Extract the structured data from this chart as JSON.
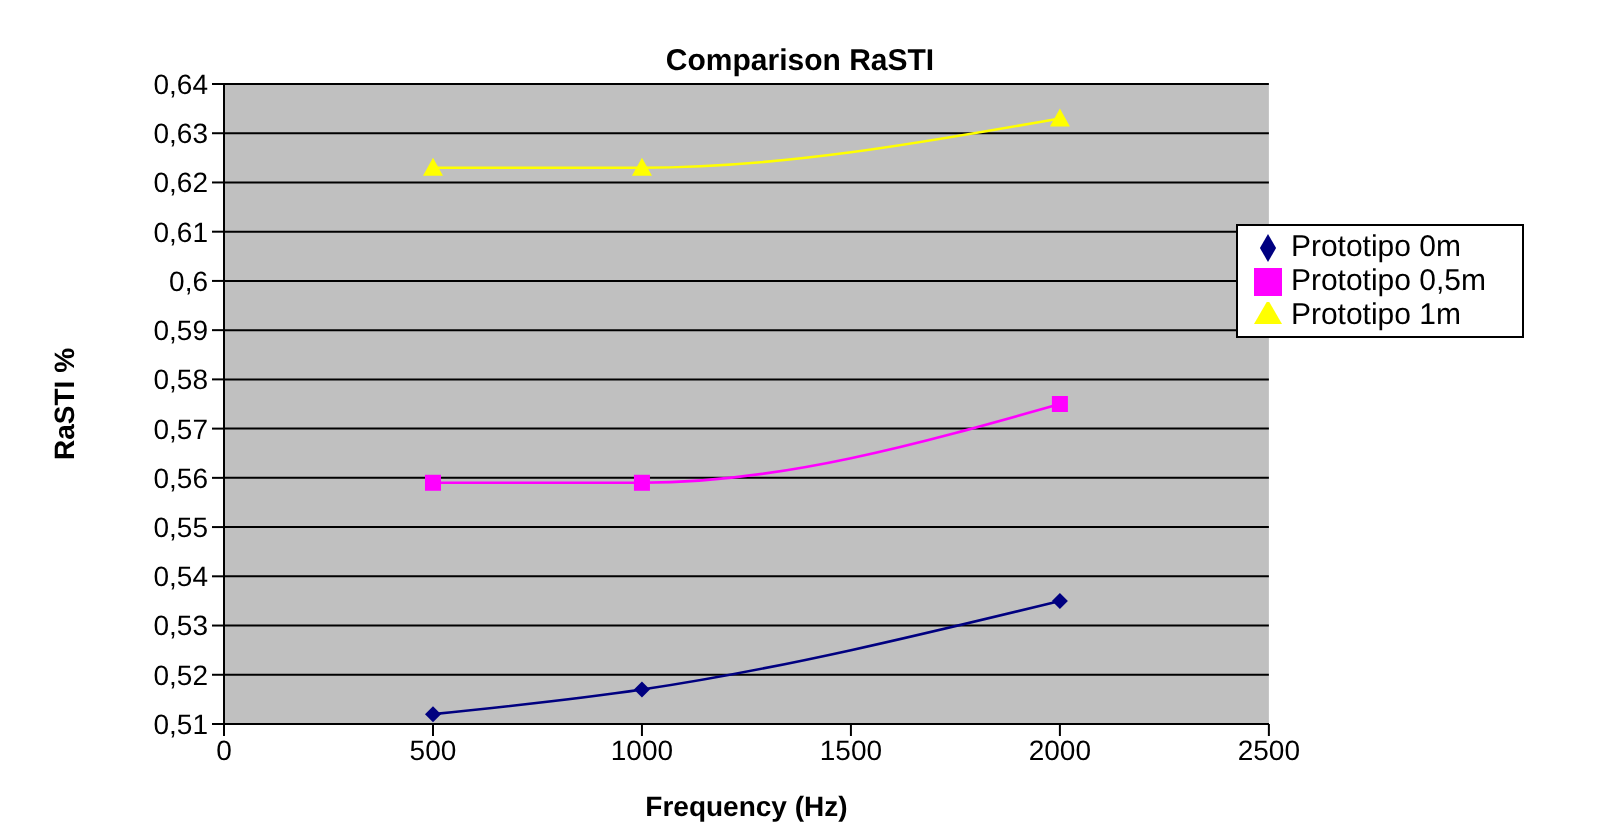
{
  "chart_data": {
    "type": "line",
    "title": "Comparison RaSTI",
    "xlabel": "Frequency (Hz)",
    "ylabel": "RaSTI %",
    "x": [
      500,
      1000,
      2000
    ],
    "series": [
      {
        "name": "Prototipo 0m",
        "color": "#000080",
        "marker": "diamond",
        "values": [
          0.512,
          0.517,
          0.535
        ]
      },
      {
        "name": "Prototipo 0,5m",
        "color": "#ff00ff",
        "marker": "square",
        "values": [
          0.559,
          0.559,
          0.575
        ]
      },
      {
        "name": "Prototipo 1m",
        "color": "#ffff00",
        "marker": "triangle",
        "values": [
          0.623,
          0.623,
          0.633
        ]
      }
    ],
    "xlim": [
      0,
      2500
    ],
    "xticks": [
      0,
      500,
      1000,
      1500,
      2000,
      2500
    ],
    "ylim": [
      0.51,
      0.64
    ],
    "yticks": [
      {
        "value": 0.51,
        "label": "0,51"
      },
      {
        "value": 0.52,
        "label": "0,52"
      },
      {
        "value": 0.53,
        "label": "0,53"
      },
      {
        "value": 0.54,
        "label": "0,54"
      },
      {
        "value": 0.55,
        "label": "0,55"
      },
      {
        "value": 0.56,
        "label": "0,56"
      },
      {
        "value": 0.57,
        "label": "0,57"
      },
      {
        "value": 0.58,
        "label": "0,58"
      },
      {
        "value": 0.59,
        "label": "0,59"
      },
      {
        "value": 0.6,
        "label": "0,6"
      },
      {
        "value": 0.61,
        "label": "0,61"
      },
      {
        "value": 0.62,
        "label": "0,62"
      },
      {
        "value": 0.63,
        "label": "0,63"
      },
      {
        "value": 0.64,
        "label": "0,64"
      }
    ],
    "grid": "y",
    "legend": "right",
    "line_style": "solid"
  }
}
